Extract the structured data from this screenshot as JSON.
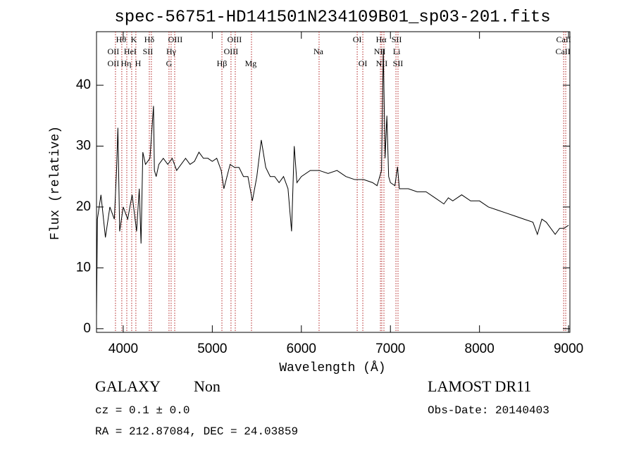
{
  "chart_data": {
    "type": "line",
    "title": "spec-56751-HD141501N234109B01_sp03-201.fits",
    "x_label": "Wavelength (Å)",
    "y_label": "Flux (relative)",
    "xlim": [
      3700,
      9015
    ],
    "ylim": [
      -0.6,
      48.8
    ],
    "xticks": [
      4000,
      5000,
      6000,
      7000,
      8000,
      9000
    ],
    "yticks": [
      0,
      10,
      20,
      30,
      40
    ],
    "series": [
      {
        "name": "flux",
        "color": "#000000",
        "x": [
          3700,
          3710,
          3750,
          3800,
          3850,
          3900,
          3925,
          3940,
          3960,
          4000,
          4050,
          4100,
          4150,
          4180,
          4200,
          4220,
          4250,
          4300,
          4340,
          4350,
          4370,
          4400,
          4450,
          4500,
          4550,
          4600,
          4650,
          4700,
          4750,
          4800,
          4850,
          4900,
          4950,
          5000,
          5050,
          5100,
          5130,
          5200,
          5250,
          5300,
          5350,
          5400,
          5450,
          5500,
          5550,
          5600,
          5650,
          5700,
          5750,
          5800,
          5850,
          5890,
          5920,
          5950,
          6000,
          6100,
          6200,
          6300,
          6400,
          6500,
          6600,
          6700,
          6800,
          6850,
          6900,
          6920,
          6940,
          6960,
          6980,
          7000,
          7050,
          7080,
          7100,
          7200,
          7300,
          7400,
          7500,
          7600,
          7650,
          7700,
          7800,
          7900,
          8000,
          8100,
          8200,
          8300,
          8400,
          8500,
          8600,
          8650,
          8700,
          8750,
          8800,
          8850,
          8900,
          8950,
          9000
        ],
        "values": [
          2,
          18,
          22,
          15,
          20,
          18,
          26,
          33,
          16,
          20,
          18,
          22,
          16,
          23,
          14,
          29,
          27,
          28,
          36.6,
          26,
          25,
          27,
          28,
          27,
          28,
          26,
          27,
          28,
          27,
          27.5,
          29,
          28,
          28,
          27.5,
          28,
          26,
          23,
          27,
          26.5,
          26.5,
          25,
          25,
          21,
          25,
          31,
          26.5,
          25,
          25,
          24,
          25,
          23,
          16,
          30,
          24,
          25,
          26,
          26,
          25.5,
          26,
          25,
          24.5,
          24.5,
          24,
          23.5,
          26,
          46,
          28,
          35,
          25,
          24,
          23.5,
          26.6,
          23,
          23,
          22.5,
          22.5,
          21.5,
          20.5,
          21.5,
          21,
          22,
          21,
          21,
          20,
          19.5,
          19,
          18.5,
          18,
          17.5,
          15.5,
          18,
          17.5,
          16.5,
          15.5,
          16.5,
          16.5,
          17
        ]
      }
    ],
    "line_marks": {
      "color": "#b22222",
      "wavelengths": [
        3913,
        3984,
        4040,
        4095,
        4142,
        4293,
        4316,
        4514,
        4538,
        4578,
        5108,
        5210,
        5258,
        5440,
        6199,
        6627,
        6690,
        6888,
        6903,
        6927,
        7062,
        7085,
        8945,
        8968
      ]
    },
    "line_labels": [
      [
        {
          "text": "Hθ",
          "wavelength": 3976
        },
        {
          "text": "K",
          "wavelength": 4119
        },
        {
          "text": "Hδ",
          "wavelength": 4293
        },
        {
          "text": "OIII",
          "wavelength": 4585
        },
        {
          "text": "OIII",
          "wavelength": 5250
        },
        {
          "text": "OI",
          "wavelength": 6627
        },
        {
          "text": "Hα",
          "wavelength": 6896
        },
        {
          "text": "SII",
          "wavelength": 7070
        },
        {
          "text": "CaII",
          "wavelength": 8945
        }
      ],
      [
        {
          "text": "OII",
          "wavelength": 3889
        },
        {
          "text": "HeI",
          "wavelength": 4079
        },
        {
          "text": "SII",
          "wavelength": 4277
        },
        {
          "text": "Hγ",
          "wavelength": 4538
        },
        {
          "text": "OIII",
          "wavelength": 5210
        },
        {
          "text": "Na",
          "wavelength": 6191
        },
        {
          "text": "NII",
          "wavelength": 6880
        },
        {
          "text": "Li",
          "wavelength": 7070
        },
        {
          "text": "CaII",
          "wavelength": 8937
        }
      ],
      [
        {
          "text": "OII",
          "wavelength": 3889
        },
        {
          "text": "Hη",
          "wavelength": 4032
        },
        {
          "text": "H",
          "wavelength": 4166
        },
        {
          "text": "G",
          "wavelength": 4514
        },
        {
          "text": "Hβ",
          "wavelength": 5108
        },
        {
          "text": "Mg",
          "wavelength": 5432
        },
        {
          "text": "OI",
          "wavelength": 6690
        },
        {
          "text": "NII",
          "wavelength": 6903
        },
        {
          "text": "SII",
          "wavelength": 7085
        }
      ]
    ],
    "info": {
      "class": "GALAXY",
      "subclass": "Non",
      "survey": "LAMOST DR11",
      "cz": "cz = 0.1 ± 0.0",
      "obs_date": "Obs-Date: 20140403",
      "coords": "RA = 212.87084, DEC =  24.03859"
    }
  }
}
